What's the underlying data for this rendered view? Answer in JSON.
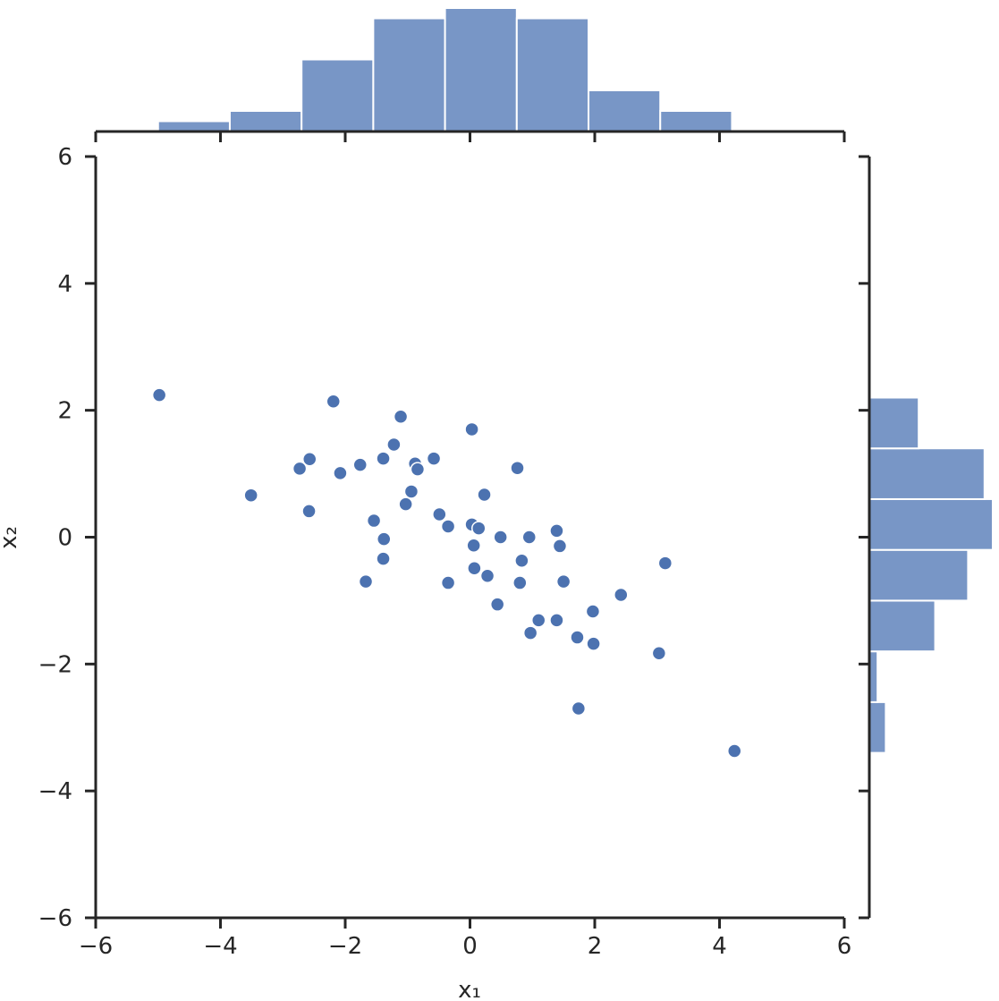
{
  "chart_data": {
    "type": "scatter",
    "title": "",
    "xlabel": "x₁",
    "ylabel": "x₂",
    "xlim": [
      -6,
      6
    ],
    "ylim": [
      -6,
      6
    ],
    "x_ticks": [
      -6,
      -4,
      -2,
      0,
      2,
      4,
      6
    ],
    "y_ticks": [
      -6,
      -4,
      -2,
      0,
      2,
      4,
      6
    ],
    "x_tick_labels": [
      "−6",
      "−4",
      "−2",
      "0",
      "2",
      "4",
      "6"
    ],
    "y_tick_labels": [
      "−6",
      "−4",
      "−2",
      "0",
      "2",
      "4",
      "6"
    ],
    "grid": false,
    "color": "#4c72b0",
    "hist_color": "#7896c6",
    "points": [
      {
        "x": -4.98,
        "y": 2.24
      },
      {
        "x": -3.51,
        "y": 0.66
      },
      {
        "x": -2.73,
        "y": 1.08
      },
      {
        "x": -2.57,
        "y": 1.23
      },
      {
        "x": -2.58,
        "y": 0.41
      },
      {
        "x": -2.19,
        "y": 2.14
      },
      {
        "x": -2.08,
        "y": 1.01
      },
      {
        "x": -1.76,
        "y": 1.14
      },
      {
        "x": -1.67,
        "y": -0.7
      },
      {
        "x": -1.54,
        "y": 0.26
      },
      {
        "x": -1.39,
        "y": 1.24
      },
      {
        "x": -1.38,
        "y": -0.03
      },
      {
        "x": -1.39,
        "y": -0.34
      },
      {
        "x": -1.22,
        "y": 1.46
      },
      {
        "x": -1.11,
        "y": 1.9
      },
      {
        "x": -1.03,
        "y": 0.52
      },
      {
        "x": -0.94,
        "y": 0.72
      },
      {
        "x": -0.88,
        "y": 1.16
      },
      {
        "x": -0.84,
        "y": 1.07
      },
      {
        "x": -0.58,
        "y": 1.24
      },
      {
        "x": -0.49,
        "y": 0.36
      },
      {
        "x": -0.35,
        "y": 0.17
      },
      {
        "x": -0.35,
        "y": -0.72
      },
      {
        "x": 0.03,
        "y": 1.7
      },
      {
        "x": 0.03,
        "y": 0.2
      },
      {
        "x": 0.06,
        "y": -0.13
      },
      {
        "x": 0.07,
        "y": -0.49
      },
      {
        "x": 0.14,
        "y": 0.14
      },
      {
        "x": 0.23,
        "y": 0.67
      },
      {
        "x": 0.28,
        "y": -0.61
      },
      {
        "x": 0.44,
        "y": -1.06
      },
      {
        "x": 0.49,
        "y": 0.0
      },
      {
        "x": 0.76,
        "y": 1.09
      },
      {
        "x": 0.8,
        "y": -0.72
      },
      {
        "x": 0.83,
        "y": -0.37
      },
      {
        "x": 0.95,
        "y": 0.0
      },
      {
        "x": 0.97,
        "y": -1.51
      },
      {
        "x": 1.1,
        "y": -1.31
      },
      {
        "x": 1.39,
        "y": 0.1
      },
      {
        "x": 1.39,
        "y": -1.31
      },
      {
        "x": 1.44,
        "y": -0.14
      },
      {
        "x": 1.5,
        "y": -0.7
      },
      {
        "x": 1.72,
        "y": -1.58
      },
      {
        "x": 1.74,
        "y": -2.7
      },
      {
        "x": 1.97,
        "y": -1.17
      },
      {
        "x": 1.98,
        "y": -1.68
      },
      {
        "x": 2.42,
        "y": -0.91
      },
      {
        "x": 3.03,
        "y": -1.83
      },
      {
        "x": 3.13,
        "y": -0.41
      },
      {
        "x": 4.24,
        "y": -3.37
      }
    ],
    "x_histogram": {
      "bin_edges": [
        -5.0,
        -3.85,
        -2.7,
        -1.55,
        -0.4,
        0.75,
        1.9,
        3.05,
        4.2
      ],
      "counts": [
        1,
        2,
        7,
        11,
        12,
        11,
        4,
        2
      ]
    },
    "y_histogram": {
      "bin_edges": [
        -3.4,
        -2.6,
        -1.8,
        -1.0,
        -0.2,
        0.6,
        1.4,
        2.2
      ],
      "counts": [
        1,
        0.5,
        4,
        6,
        7.5,
        7,
        3
      ]
    }
  }
}
